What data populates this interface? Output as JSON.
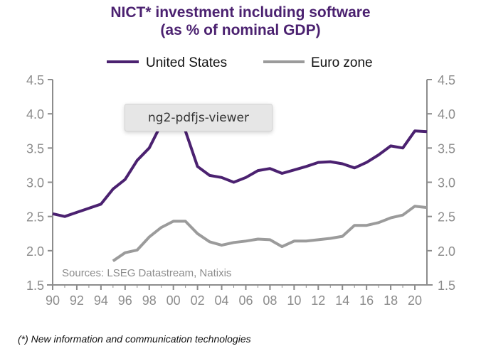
{
  "chart_data": {
    "type": "line",
    "title": "NICT* investment including software",
    "subtitle": "(as % of nominal GDP)",
    "xlabel": "",
    "ylabel": "",
    "ylim": [
      1.5,
      4.5
    ],
    "xlim": [
      1990,
      2021
    ],
    "y_ticks": [
      "4.5",
      "4.0",
      "3.5",
      "3.0",
      "2.5",
      "2.0",
      "1.5"
    ],
    "y_tick_values": [
      4.5,
      4.0,
      3.5,
      3.0,
      2.5,
      2.0,
      1.5
    ],
    "x_ticks": [
      "90",
      "92",
      "94",
      "96",
      "98",
      "00",
      "02",
      "04",
      "06",
      "08",
      "10",
      "12",
      "14",
      "16",
      "18",
      "20"
    ],
    "x_tick_values": [
      1990,
      1992,
      1994,
      1996,
      1998,
      2000,
      2002,
      2004,
      2006,
      2008,
      2010,
      2012,
      2014,
      2016,
      2018,
      2020
    ],
    "grid": false,
    "legend_position": "top-center",
    "dual_y_axis": true,
    "series": [
      {
        "name": "United States",
        "color": "#4b2170",
        "x": [
          1990,
          1991,
          1992,
          1993,
          1994,
          1995,
          1996,
          1997,
          1998,
          1999,
          2000,
          2001,
          2002,
          2003,
          2004,
          2005,
          2006,
          2007,
          2008,
          2009,
          2010,
          2011,
          2012,
          2013,
          2014,
          2015,
          2016,
          2017,
          2018,
          2019,
          2020,
          2021
        ],
        "values": [
          2.54,
          2.5,
          2.56,
          2.62,
          2.68,
          2.9,
          3.04,
          3.32,
          3.5,
          3.85,
          4.05,
          3.75,
          3.23,
          3.1,
          3.07,
          3.0,
          3.07,
          3.17,
          3.2,
          3.13,
          3.18,
          3.23,
          3.29,
          3.3,
          3.27,
          3.21,
          3.29,
          3.4,
          3.53,
          3.5,
          3.75,
          3.74
        ]
      },
      {
        "name": "Euro zone",
        "color": "#9b9b9b",
        "x": [
          1995,
          1996,
          1997,
          1998,
          1999,
          2000,
          2001,
          2002,
          2003,
          2004,
          2005,
          2006,
          2007,
          2008,
          2009,
          2010,
          2011,
          2012,
          2013,
          2014,
          2015,
          2016,
          2017,
          2018,
          2019,
          2020,
          2021
        ],
        "values": [
          1.85,
          1.97,
          2.01,
          2.2,
          2.34,
          2.43,
          2.43,
          2.25,
          2.13,
          2.08,
          2.12,
          2.14,
          2.17,
          2.16,
          2.06,
          2.14,
          2.14,
          2.16,
          2.18,
          2.21,
          2.37,
          2.37,
          2.41,
          2.48,
          2.52,
          2.65,
          2.63
        ]
      }
    ],
    "annotations": [
      "Sources: LSEG Datastream, Natixis"
    ]
  },
  "title_line1": "NICT* investment including software",
  "title_line2": "(as % of nominal GDP)",
  "legend": [
    {
      "label": "United States"
    },
    {
      "label": "Euro zone"
    }
  ],
  "source": "Sources: LSEG Datastream, Natixis",
  "footnote": "(*) New information and communication technologies",
  "tooltip": "ng2-pdfjs-viewer",
  "colors": {
    "us": "#4b2170",
    "euro": "#9b9b9b",
    "axis": "#8c8c8c",
    "title": "#4b2170"
  }
}
